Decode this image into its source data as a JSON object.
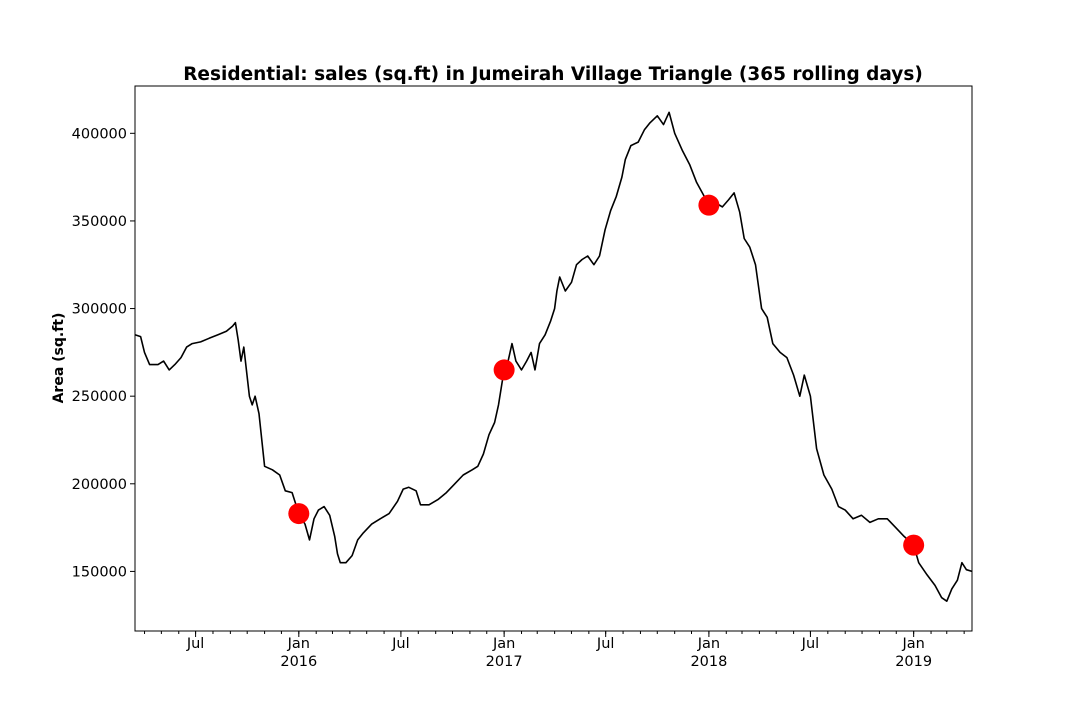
{
  "chart_data": {
    "type": "line",
    "title": "Residential: sales (sq.ft) in Jumeirah Village Triangle (365 rolling days)",
    "xlabel": "",
    "ylabel": "Area (sq.ft)",
    "xlim": [
      "2015-03-15",
      "2019-04-15"
    ],
    "ylim": [
      116000,
      427000
    ],
    "grid": false,
    "legend": "none",
    "y_ticks": [
      150000,
      200000,
      250000,
      300000,
      350000,
      400000
    ],
    "x_ticks": [
      {
        "date": "2015-07-01",
        "label": "Jul",
        "year": ""
      },
      {
        "date": "2016-01-01",
        "label": "Jan",
        "year": "2016"
      },
      {
        "date": "2016-07-01",
        "label": "Jul",
        "year": ""
      },
      {
        "date": "2017-01-01",
        "label": "Jan",
        "year": "2017"
      },
      {
        "date": "2017-07-01",
        "label": "Jul",
        "year": ""
      },
      {
        "date": "2018-01-01",
        "label": "Jan",
        "year": "2018"
      },
      {
        "date": "2018-07-01",
        "label": "Jul",
        "year": ""
      },
      {
        "date": "2019-01-01",
        "label": "Jan",
        "year": "2019"
      }
    ],
    "line_color": "#000000",
    "marker_color": "#ff0000",
    "series": [
      {
        "points": [
          [
            "2015-03-15",
            285000
          ],
          [
            "2015-03-25",
            284000
          ],
          [
            "2015-04-01",
            275000
          ],
          [
            "2015-04-10",
            268000
          ],
          [
            "2015-04-25",
            268000
          ],
          [
            "2015-05-05",
            270000
          ],
          [
            "2015-05-15",
            265000
          ],
          [
            "2015-05-25",
            268000
          ],
          [
            "2015-06-05",
            272000
          ],
          [
            "2015-06-15",
            278000
          ],
          [
            "2015-06-25",
            280000
          ],
          [
            "2015-07-10",
            281000
          ],
          [
            "2015-07-25",
            283000
          ],
          [
            "2015-08-10",
            285000
          ],
          [
            "2015-08-25",
            287000
          ],
          [
            "2015-09-05",
            290000
          ],
          [
            "2015-09-10",
            292000
          ],
          [
            "2015-09-15",
            282000
          ],
          [
            "2015-09-20",
            270000
          ],
          [
            "2015-09-25",
            278000
          ],
          [
            "2015-10-05",
            250000
          ],
          [
            "2015-10-10",
            245000
          ],
          [
            "2015-10-15",
            250000
          ],
          [
            "2015-10-22",
            240000
          ],
          [
            "2015-11-01",
            210000
          ],
          [
            "2015-11-15",
            208000
          ],
          [
            "2015-11-28",
            205000
          ],
          [
            "2015-12-08",
            196000
          ],
          [
            "2015-12-20",
            195000
          ],
          [
            "2016-01-01",
            183000
          ],
          [
            "2016-01-12",
            177000
          ],
          [
            "2016-01-20",
            168000
          ],
          [
            "2016-01-28",
            180000
          ],
          [
            "2016-02-05",
            185000
          ],
          [
            "2016-02-15",
            187000
          ],
          [
            "2016-02-25",
            182000
          ],
          [
            "2016-03-05",
            170000
          ],
          [
            "2016-03-10",
            160000
          ],
          [
            "2016-03-15",
            155000
          ],
          [
            "2016-03-25",
            155000
          ],
          [
            "2016-04-05",
            159000
          ],
          [
            "2016-04-15",
            168000
          ],
          [
            "2016-04-25",
            172000
          ],
          [
            "2016-05-10",
            177000
          ],
          [
            "2016-05-25",
            180000
          ],
          [
            "2016-06-10",
            183000
          ],
          [
            "2016-06-25",
            190000
          ],
          [
            "2016-07-05",
            197000
          ],
          [
            "2016-07-15",
            198000
          ],
          [
            "2016-07-28",
            196000
          ],
          [
            "2016-08-05",
            188000
          ],
          [
            "2016-08-20",
            188000
          ],
          [
            "2016-09-05",
            191000
          ],
          [
            "2016-09-20",
            195000
          ],
          [
            "2016-10-05",
            200000
          ],
          [
            "2016-10-20",
            205000
          ],
          [
            "2016-11-05",
            208000
          ],
          [
            "2016-11-15",
            210000
          ],
          [
            "2016-11-25",
            217000
          ],
          [
            "2016-12-05",
            228000
          ],
          [
            "2016-12-15",
            235000
          ],
          [
            "2016-12-22",
            245000
          ],
          [
            "2017-01-01",
            265000
          ],
          [
            "2017-01-08",
            270000
          ],
          [
            "2017-01-15",
            280000
          ],
          [
            "2017-01-22",
            270000
          ],
          [
            "2017-02-01",
            265000
          ],
          [
            "2017-02-10",
            270000
          ],
          [
            "2017-02-18",
            275000
          ],
          [
            "2017-02-25",
            265000
          ],
          [
            "2017-03-05",
            280000
          ],
          [
            "2017-03-15",
            285000
          ],
          [
            "2017-03-25",
            293000
          ],
          [
            "2017-04-01",
            300000
          ],
          [
            "2017-04-05",
            310000
          ],
          [
            "2017-04-10",
            318000
          ],
          [
            "2017-04-20",
            310000
          ],
          [
            "2017-05-01",
            315000
          ],
          [
            "2017-05-10",
            325000
          ],
          [
            "2017-05-20",
            328000
          ],
          [
            "2017-05-30",
            330000
          ],
          [
            "2017-06-10",
            325000
          ],
          [
            "2017-06-20",
            330000
          ],
          [
            "2017-06-30",
            345000
          ],
          [
            "2017-07-10",
            356000
          ],
          [
            "2017-07-20",
            364000
          ],
          [
            "2017-07-30",
            375000
          ],
          [
            "2017-08-05",
            385000
          ],
          [
            "2017-08-15",
            393000
          ],
          [
            "2017-08-28",
            395000
          ],
          [
            "2017-09-08",
            402000
          ],
          [
            "2017-09-18",
            406000
          ],
          [
            "2017-10-01",
            410000
          ],
          [
            "2017-10-12",
            405000
          ],
          [
            "2017-10-22",
            412000
          ],
          [
            "2017-11-01",
            400000
          ],
          [
            "2017-11-15",
            390000
          ],
          [
            "2017-11-28",
            382000
          ],
          [
            "2017-12-10",
            372000
          ],
          [
            "2017-12-22",
            365000
          ],
          [
            "2018-01-01",
            359000
          ],
          [
            "2018-01-08",
            355000
          ],
          [
            "2018-01-15",
            360000
          ],
          [
            "2018-01-25",
            358000
          ],
          [
            "2018-02-05",
            362000
          ],
          [
            "2018-02-15",
            366000
          ],
          [
            "2018-02-25",
            355000
          ],
          [
            "2018-03-05",
            340000
          ],
          [
            "2018-03-15",
            335000
          ],
          [
            "2018-03-25",
            325000
          ],
          [
            "2018-04-05",
            300000
          ],
          [
            "2018-04-15",
            295000
          ],
          [
            "2018-04-25",
            280000
          ],
          [
            "2018-05-08",
            275000
          ],
          [
            "2018-05-20",
            272000
          ],
          [
            "2018-06-01",
            262000
          ],
          [
            "2018-06-12",
            250000
          ],
          [
            "2018-06-20",
            262000
          ],
          [
            "2018-07-01",
            250000
          ],
          [
            "2018-07-12",
            220000
          ],
          [
            "2018-07-25",
            205000
          ],
          [
            "2018-08-08",
            197000
          ],
          [
            "2018-08-20",
            187000
          ],
          [
            "2018-09-01",
            185000
          ],
          [
            "2018-09-15",
            180000
          ],
          [
            "2018-09-30",
            182000
          ],
          [
            "2018-10-15",
            178000
          ],
          [
            "2018-10-30",
            180000
          ],
          [
            "2018-11-15",
            180000
          ],
          [
            "2018-11-30",
            175000
          ],
          [
            "2018-12-15",
            170000
          ],
          [
            "2019-01-01",
            165000
          ],
          [
            "2019-01-10",
            155000
          ],
          [
            "2019-01-25",
            148000
          ],
          [
            "2019-02-08",
            142000
          ],
          [
            "2019-02-20",
            135000
          ],
          [
            "2019-03-01",
            133000
          ],
          [
            "2019-03-10",
            140000
          ],
          [
            "2019-03-20",
            145000
          ],
          [
            "2019-03-28",
            155000
          ],
          [
            "2019-04-05",
            151000
          ],
          [
            "2019-04-15",
            150000
          ]
        ]
      }
    ],
    "highlighted_points": [
      [
        "2016-01-01",
        183000
      ],
      [
        "2017-01-01",
        265000
      ],
      [
        "2018-01-01",
        359000
      ],
      [
        "2019-01-01",
        165000
      ]
    ]
  }
}
